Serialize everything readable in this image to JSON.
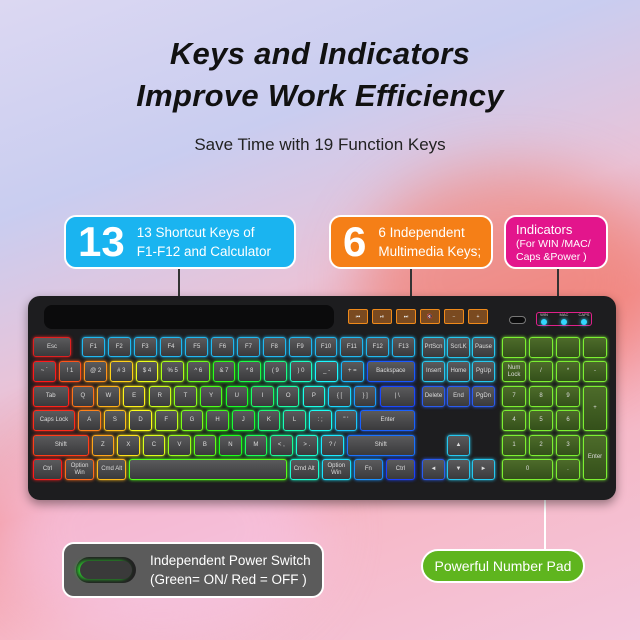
{
  "header": {
    "title_line1": "Keys and Indicators",
    "title_line2": "Improve Work Efficiency",
    "subtitle": "Save Time with 19 Function Keys"
  },
  "callouts": {
    "shortcut": {
      "number": "13",
      "text_line1": "13 Shortcut Keys of",
      "text_line2": "F1-F12 and Calculator",
      "color": "#1ab4f0"
    },
    "multimedia": {
      "number": "6",
      "text_line1": "6 Independent",
      "text_line2": "Multimedia Keys;",
      "color": "#f57f17"
    },
    "indicators": {
      "text_line1": "Indicators",
      "text_line2": "(For  WIN /MAC/",
      "text_line3": "Caps &Power )",
      "color": "#e3158c"
    },
    "power": {
      "text_line1": "Independent Power Switch",
      "text_line2": "(Green= ON/ Red = OFF )",
      "color": "#5b5b5b"
    },
    "numpad": {
      "text": "Powerful Number Pad",
      "color": "#5fb51e"
    }
  },
  "keyboard": {
    "main_rows": [
      [
        "Esc",
        "F1",
        "F2",
        "F3",
        "F4",
        "F5",
        "F6",
        "F7",
        "F8",
        "F9",
        "F10",
        "F11",
        "F12",
        "F13"
      ],
      [
        "~ `",
        "! 1",
        "@ 2",
        "# 3",
        "$ 4",
        "% 5",
        "^ 6",
        "& 7",
        "* 8",
        "( 9",
        ") 0",
        "_ -",
        "+ =",
        "Backspace"
      ],
      [
        "Tab",
        "Q",
        "W",
        "E",
        "R",
        "T",
        "Y",
        "U",
        "I",
        "O",
        "P",
        "{ [",
        "} ]",
        "| \\"
      ],
      [
        "Caps Lock",
        "A",
        "S",
        "D",
        "F",
        "G",
        "H",
        "J",
        "K",
        "L",
        ": ;",
        "\" '",
        "Enter"
      ],
      [
        "Shift",
        "Z",
        "X",
        "C",
        "V",
        "B",
        "N",
        "M",
        "< ,",
        "> .",
        "? /",
        "Shift"
      ],
      [
        "Ctrl",
        "Option Win",
        "Cmd Alt",
        "",
        "Cmd Alt",
        "Option Win",
        "Fn",
        "Ctrl"
      ]
    ],
    "nav_keys": [
      "PrtScn",
      "ScrLK",
      "Pause",
      "Insert",
      "Home",
      "PgUp",
      "Delete",
      "End",
      "PgDn",
      "▲",
      "◄",
      "▼",
      "►"
    ],
    "numpad_keys": [
      "",
      "",
      "",
      "",
      "Num Lock",
      "/",
      "*",
      "-",
      "7",
      "8",
      "9",
      "+",
      "4",
      "5",
      "6",
      "1",
      "2",
      "3",
      "Enter",
      "0",
      "."
    ],
    "multimedia_keys": [
      "⏮",
      "⏯",
      "⏭",
      "🔇",
      "−",
      "+"
    ],
    "indicator_labels": [
      "WIN",
      "MAC",
      "CAPS"
    ],
    "glow_colors": {
      "function_row": "#21b8f0",
      "nav": "#26c8f0",
      "numpad": "#7cf032"
    }
  }
}
